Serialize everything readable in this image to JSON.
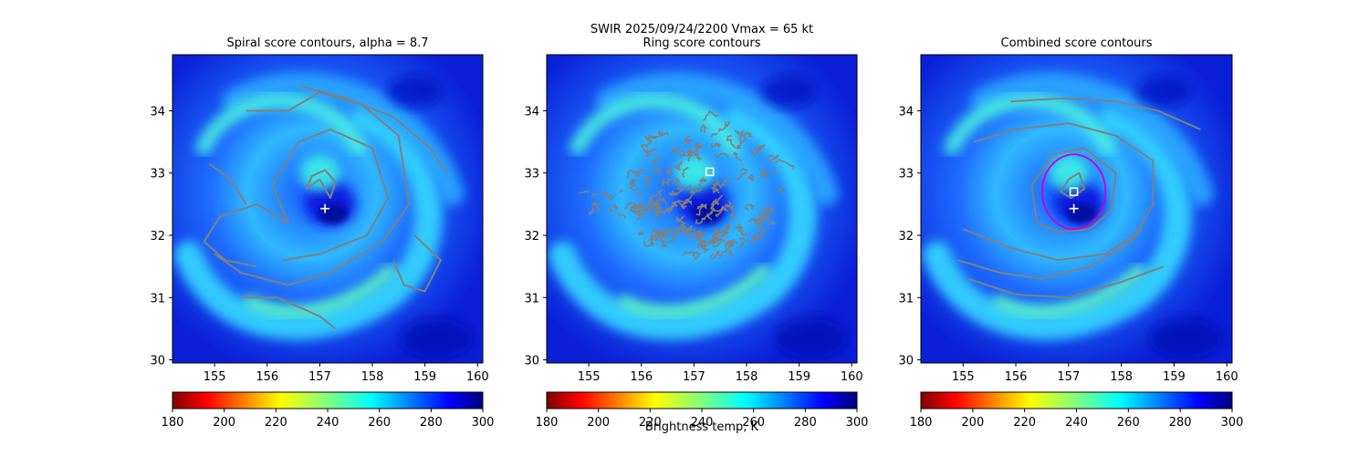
{
  "figure": {
    "suptitle_line1": "SWIR  2025/09/24/2200    Vmax = 65 kt",
    "colorbar_label": "Brightness temp, K"
  },
  "chart_data": [
    {
      "type": "heatmap",
      "title": "Spiral score contours, alpha =  8.7",
      "xlim": [
        154.2,
        160.1
      ],
      "ylim": [
        29.95,
        34.9
      ],
      "xticks": [
        155,
        156,
        157,
        158,
        159,
        160
      ],
      "yticks": [
        30,
        31,
        32,
        33,
        34
      ],
      "colormap": "jet_r",
      "clim": [
        180,
        300
      ],
      "colorbar_ticks": [
        180,
        200,
        220,
        240,
        260,
        280,
        300
      ],
      "contour_color": "#808080",
      "markers": [
        {
          "kind": "plus",
          "lon": 157.1,
          "lat": 32.43,
          "color": "#ffffff"
        }
      ]
    },
    {
      "type": "heatmap",
      "title": "Ring score contours",
      "xlim": [
        154.2,
        160.1
      ],
      "ylim": [
        29.95,
        34.9
      ],
      "xticks": [
        155,
        156,
        157,
        158,
        159,
        160
      ],
      "yticks": [
        30,
        31,
        32,
        33,
        34
      ],
      "colormap": "jet_r",
      "clim": [
        180,
        300
      ],
      "colorbar_ticks": [
        180,
        200,
        220,
        240,
        260,
        280,
        300
      ],
      "contour_color": "#808080",
      "markers": [
        {
          "kind": "square",
          "lon": 157.3,
          "lat": 33.02,
          "color": "#ffffff"
        }
      ]
    },
    {
      "type": "heatmap",
      "title": "Combined score contours",
      "xlim": [
        154.2,
        160.1
      ],
      "ylim": [
        29.95,
        34.9
      ],
      "xticks": [
        155,
        156,
        157,
        158,
        159,
        160
      ],
      "yticks": [
        30,
        31,
        32,
        33,
        34
      ],
      "colormap": "jet_r",
      "clim": [
        180,
        300
      ],
      "colorbar_ticks": [
        180,
        200,
        220,
        240,
        260,
        280,
        300
      ],
      "contour_color": "#808080",
      "markers": [
        {
          "kind": "square",
          "lon": 157.1,
          "lat": 32.7,
          "color": "#ffffff"
        },
        {
          "kind": "plus",
          "lon": 157.1,
          "lat": 32.43,
          "color": "#ffffff"
        },
        {
          "kind": "circle",
          "lon": 157.1,
          "lat": 32.7,
          "radius_deg": 0.6,
          "color": "#cc00cc"
        }
      ]
    }
  ]
}
